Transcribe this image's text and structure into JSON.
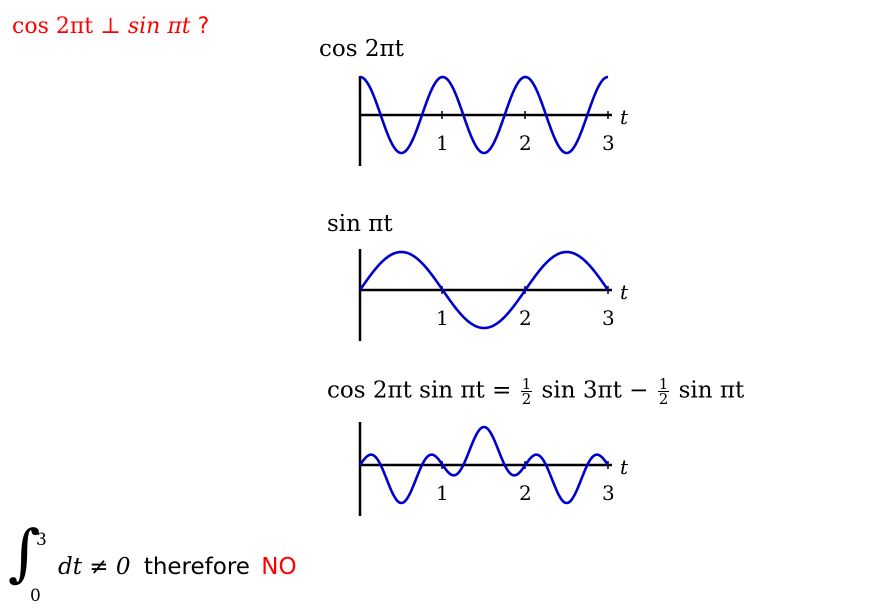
{
  "question": {
    "lhs": "cos 2πt",
    "perp": "⊥",
    "rhs": "sin πt",
    "qmark": "?"
  },
  "plots": [
    {
      "title": "cos 2πt",
      "function": "cos(2πt)",
      "t_range": [
        0,
        3
      ],
      "y_range": [
        -1,
        1
      ],
      "axis_label": "t",
      "ticks": [
        "1",
        "2",
        "3"
      ],
      "color": "#0000cc"
    },
    {
      "title": "sin πt",
      "function": "sin(πt)",
      "t_range": [
        0,
        3
      ],
      "y_range": [
        -1,
        1
      ],
      "axis_label": "t",
      "ticks": [
        "1",
        "2",
        "3"
      ],
      "color": "#0000cc"
    },
    {
      "title_parts": {
        "left": "cos 2πt sin πt =",
        "frac_num": "1",
        "frac_den": "2",
        "mid": "sin 3πt −",
        "frac2_num": "1",
        "frac2_den": "2",
        "right": "sin πt"
      },
      "function": "0.5·sin(3πt) − 0.5·sin(πt)",
      "t_range": [
        0,
        3
      ],
      "y_range": [
        -1,
        1
      ],
      "axis_label": "t",
      "ticks": [
        "1",
        "2",
        "3"
      ],
      "color": "#0000cc"
    }
  ],
  "conclusion": {
    "integral_upper": "3",
    "integral_lower": "0",
    "integrand": "dt ≠ 0",
    "word": "therefore",
    "verdict": "NO",
    "verdict_color": "#ff0000"
  }
}
